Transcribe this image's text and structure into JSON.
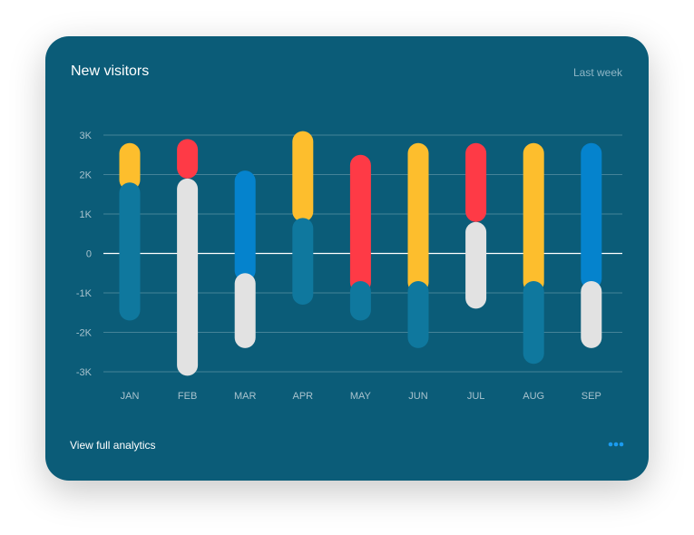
{
  "card": {
    "title": "New visitors",
    "period": "Last week",
    "footer_link": "View full analytics",
    "more_icon": "more-dots-icon"
  },
  "colors": {
    "background": "#0b5c78",
    "yellow": "#fdbe2d",
    "red": "#fe3a46",
    "blue": "#0583cd",
    "teal": "#0f789e",
    "gray": "#e2e2e2",
    "more_dots": "#1b9bf0"
  },
  "chart_data": {
    "type": "bar",
    "subtype": "floating-range",
    "categories": [
      "JAN",
      "FEB",
      "MAR",
      "APR",
      "MAY",
      "JUN",
      "JUL",
      "AUG",
      "SEP"
    ],
    "y_ticks": [
      "3K",
      "2K",
      "1K",
      "0",
      "-1K",
      "-2K",
      "-3K"
    ],
    "y_tick_values": [
      3000,
      2000,
      1000,
      0,
      -1000,
      -2000,
      -3000
    ],
    "ylim": [
      -3000,
      3000
    ],
    "grid": true,
    "bars": [
      {
        "top": {
          "from": 1600,
          "to": 2800,
          "color": "yellow"
        },
        "bottom": {
          "from": -1700,
          "to": 1800,
          "color": "teal"
        }
      },
      {
        "top": {
          "from": 1900,
          "to": 2900,
          "color": "red"
        },
        "bottom": {
          "from": -3100,
          "to": 1900,
          "color": "gray"
        }
      },
      {
        "top": {
          "from": -700,
          "to": 2100,
          "color": "blue"
        },
        "bottom": {
          "from": -2400,
          "to": -500,
          "color": "gray"
        }
      },
      {
        "top": {
          "from": 800,
          "to": 3100,
          "color": "yellow"
        },
        "bottom": {
          "from": -1300,
          "to": 900,
          "color": "teal"
        }
      },
      {
        "top": {
          "from": -1000,
          "to": 2500,
          "color": "red"
        },
        "bottom": {
          "from": -1700,
          "to": -700,
          "color": "teal"
        }
      },
      {
        "top": {
          "from": -1000,
          "to": 2800,
          "color": "yellow"
        },
        "bottom": {
          "from": -2400,
          "to": -700,
          "color": "teal"
        }
      },
      {
        "top": {
          "from": 800,
          "to": 2800,
          "color": "red"
        },
        "bottom": {
          "from": -1400,
          "to": 800,
          "color": "gray"
        }
      },
      {
        "top": {
          "from": -1000,
          "to": 2800,
          "color": "yellow"
        },
        "bottom": {
          "from": -2800,
          "to": -700,
          "color": "teal"
        }
      },
      {
        "top": {
          "from": -900,
          "to": 2800,
          "color": "blue"
        },
        "bottom": {
          "from": -2400,
          "to": -700,
          "color": "gray"
        }
      }
    ]
  }
}
